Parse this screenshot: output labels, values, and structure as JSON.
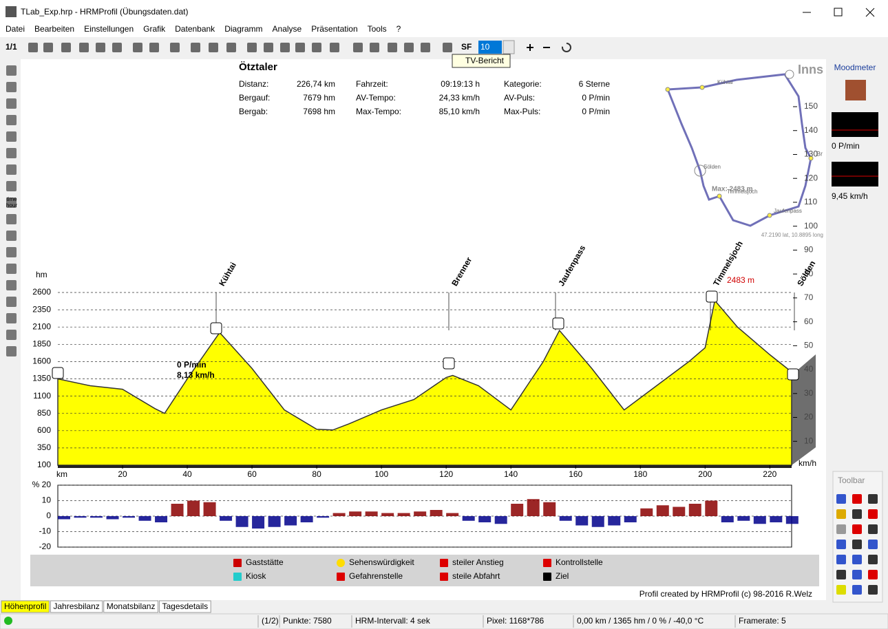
{
  "window": {
    "title": "TLab_Exp.hrp - HRMProfil (Übungsdaten.dat)"
  },
  "menu": [
    "Datei",
    "Bearbeiten",
    "Einstellungen",
    "Grafik",
    "Datenbank",
    "Diagramm",
    "Analyse",
    "Präsentation",
    "Tools",
    "?"
  ],
  "toolbar": {
    "page": "1/1",
    "sf_label": "SF",
    "sf_value": "10",
    "tooltip": "TV-Bericht"
  },
  "left_toolbar": {
    "time": "time",
    "hour": "hour"
  },
  "profile": {
    "name": "Ötztaler",
    "stats": [
      [
        "Distanz:",
        "226,74 km",
        "Fahrzeit:",
        "09:19:13 h",
        "Kategorie:",
        "6 Sterne"
      ],
      [
        "Bergauf:",
        "7679 hm",
        "AV-Tempo:",
        "24,33 km/h",
        "AV-Puls:",
        "0 P/min"
      ],
      [
        "Bergab:",
        "7698 hm",
        "Max-Tempo:",
        "85,10 km/h",
        "Max-Puls:",
        "0 P/min"
      ]
    ]
  },
  "map": {
    "city": "Inns",
    "labels": [
      "Kühtai",
      "Sölden",
      "Max: 2483 m",
      "Timmelsjoch",
      "Jaufenpass",
      "Br"
    ],
    "coords": "47.2190 lat, 10.8895 long"
  },
  "chart_data": [
    {
      "type": "area",
      "color": "#ffff00",
      "xlabel": "km",
      "ylabel": "hm",
      "y2label": "km/h",
      "x": [
        0,
        10,
        20,
        30,
        33,
        40,
        50,
        60,
        70,
        80,
        85,
        90,
        100,
        110,
        120,
        122,
        130,
        140,
        150,
        155,
        165,
        175,
        185,
        195,
        200,
        203,
        210,
        220,
        226.74
      ],
      "values": [
        1350,
        1250,
        1200,
        920,
        850,
        1350,
        2020,
        1500,
        900,
        620,
        610,
        700,
        900,
        1050,
        1370,
        1400,
        1250,
        900,
        1600,
        2050,
        1500,
        900,
        1250,
        1600,
        1800,
        2483,
        2100,
        1700,
        1450
      ],
      "xlim": [
        0,
        226.74
      ],
      "xticks": [
        20,
        40,
        60,
        80,
        100,
        120,
        140,
        160,
        180,
        200,
        220
      ],
      "ylim": [
        100,
        2600
      ],
      "yticks": [
        100,
        350,
        600,
        850,
        1100,
        1350,
        1600,
        1850,
        2100,
        2350,
        2600
      ],
      "y2lim": [
        0,
        150
      ],
      "y2ticks": [
        10,
        20,
        30,
        40,
        50,
        60,
        70,
        80,
        90,
        100,
        110,
        120,
        130,
        140,
        150
      ],
      "grid": true,
      "annotations": [
        "Kühtai",
        "Brenner",
        "Jaufenpass",
        "Timmelsjoch",
        "Sölden",
        "2483 m",
        "0 P/min",
        "8,13 km/h"
      ]
    },
    {
      "type": "bar",
      "colors": [
        "#8b0000",
        "#00008b"
      ],
      "x": [
        0,
        5,
        10,
        15,
        20,
        25,
        30,
        35,
        40,
        45,
        50,
        55,
        60,
        65,
        70,
        75,
        80,
        85,
        90,
        95,
        100,
        105,
        110,
        115,
        120,
        125,
        130,
        135,
        140,
        145,
        150,
        155,
        160,
        165,
        170,
        175,
        180,
        185,
        190,
        195,
        200,
        205,
        210,
        215,
        220,
        225
      ],
      "values": [
        -2,
        -1,
        -1,
        -2,
        -1,
        -3,
        -4,
        8,
        10,
        9,
        -3,
        -7,
        -8,
        -7,
        -6,
        -4,
        -1,
        2,
        3,
        3,
        2,
        2,
        3,
        4,
        2,
        -3,
        -4,
        -5,
        8,
        11,
        9,
        -3,
        -6,
        -7,
        -6,
        -4,
        5,
        7,
        6,
        8,
        10,
        -4,
        -3,
        -5,
        -4,
        -5
      ],
      "xlim": [
        0,
        226.74
      ],
      "ylim": [
        -20,
        20
      ],
      "yticks": [
        -20,
        -10,
        0,
        10,
        {
          "value": 20,
          "label": "% 20"
        }
      ],
      "grid": true
    }
  ],
  "legend": [
    "Gaststätte",
    "Kiosk",
    "Sehenswürdigkeit",
    "Gefahrenstelle",
    "steiler Anstieg",
    "steile Abfahrt",
    "Kontrollstelle",
    "Ziel"
  ],
  "credit": "Profil created by HRMProfil (c) 98-2016 R.Welz",
  "tabs": [
    "Höhenprofil",
    "Jahresbilanz",
    "Monatsbilanz",
    "Tagesdetails"
  ],
  "status": [
    "(1/2)",
    "Punkte: 7580",
    "HRM-Intervall: 4 sek",
    "Pixel: 1168*786",
    "0,00 km / 1365 hm / 0 % / -40,0 °C",
    "Framerate: 5"
  ],
  "moodmeter": {
    "title": "Moodmeter",
    "pulse": "0 P/min",
    "speed": "9,45 km/h"
  },
  "floating_toolbar": {
    "title": "Toolbar"
  }
}
